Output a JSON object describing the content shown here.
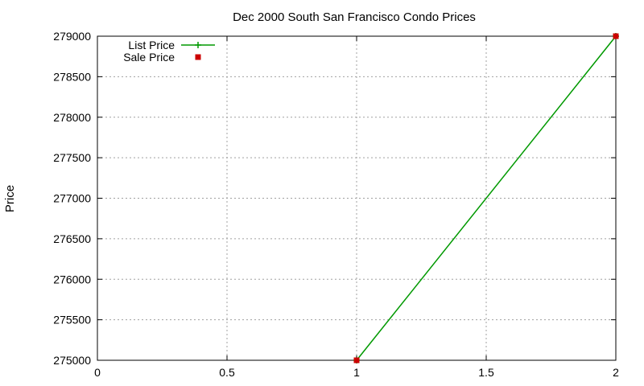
{
  "chart_data": {
    "type": "line",
    "title": "Dec 2000 South San Francisco Condo Prices",
    "xlabel": "",
    "ylabel": "Price",
    "xlim": [
      0,
      2
    ],
    "ylim": [
      275000,
      279000
    ],
    "xticks": [
      "0",
      "0.5",
      "1",
      "1.5",
      "2"
    ],
    "yticks": [
      "275000",
      "275500",
      "276000",
      "276500",
      "277000",
      "277500",
      "278000",
      "278500",
      "279000"
    ],
    "grid": true,
    "legend_position": "top-left",
    "series": [
      {
        "name": "List Price",
        "style": "line",
        "marker": "plus",
        "color": "#009900",
        "points": [
          {
            "x": 1,
            "y": 275000
          },
          {
            "x": 2,
            "y": 279000
          }
        ]
      },
      {
        "name": "Sale Price",
        "style": "points",
        "marker": "square",
        "color": "#cc0000",
        "points": [
          {
            "x": 1,
            "y": 275000
          },
          {
            "x": 2,
            "y": 279000
          }
        ]
      }
    ]
  }
}
